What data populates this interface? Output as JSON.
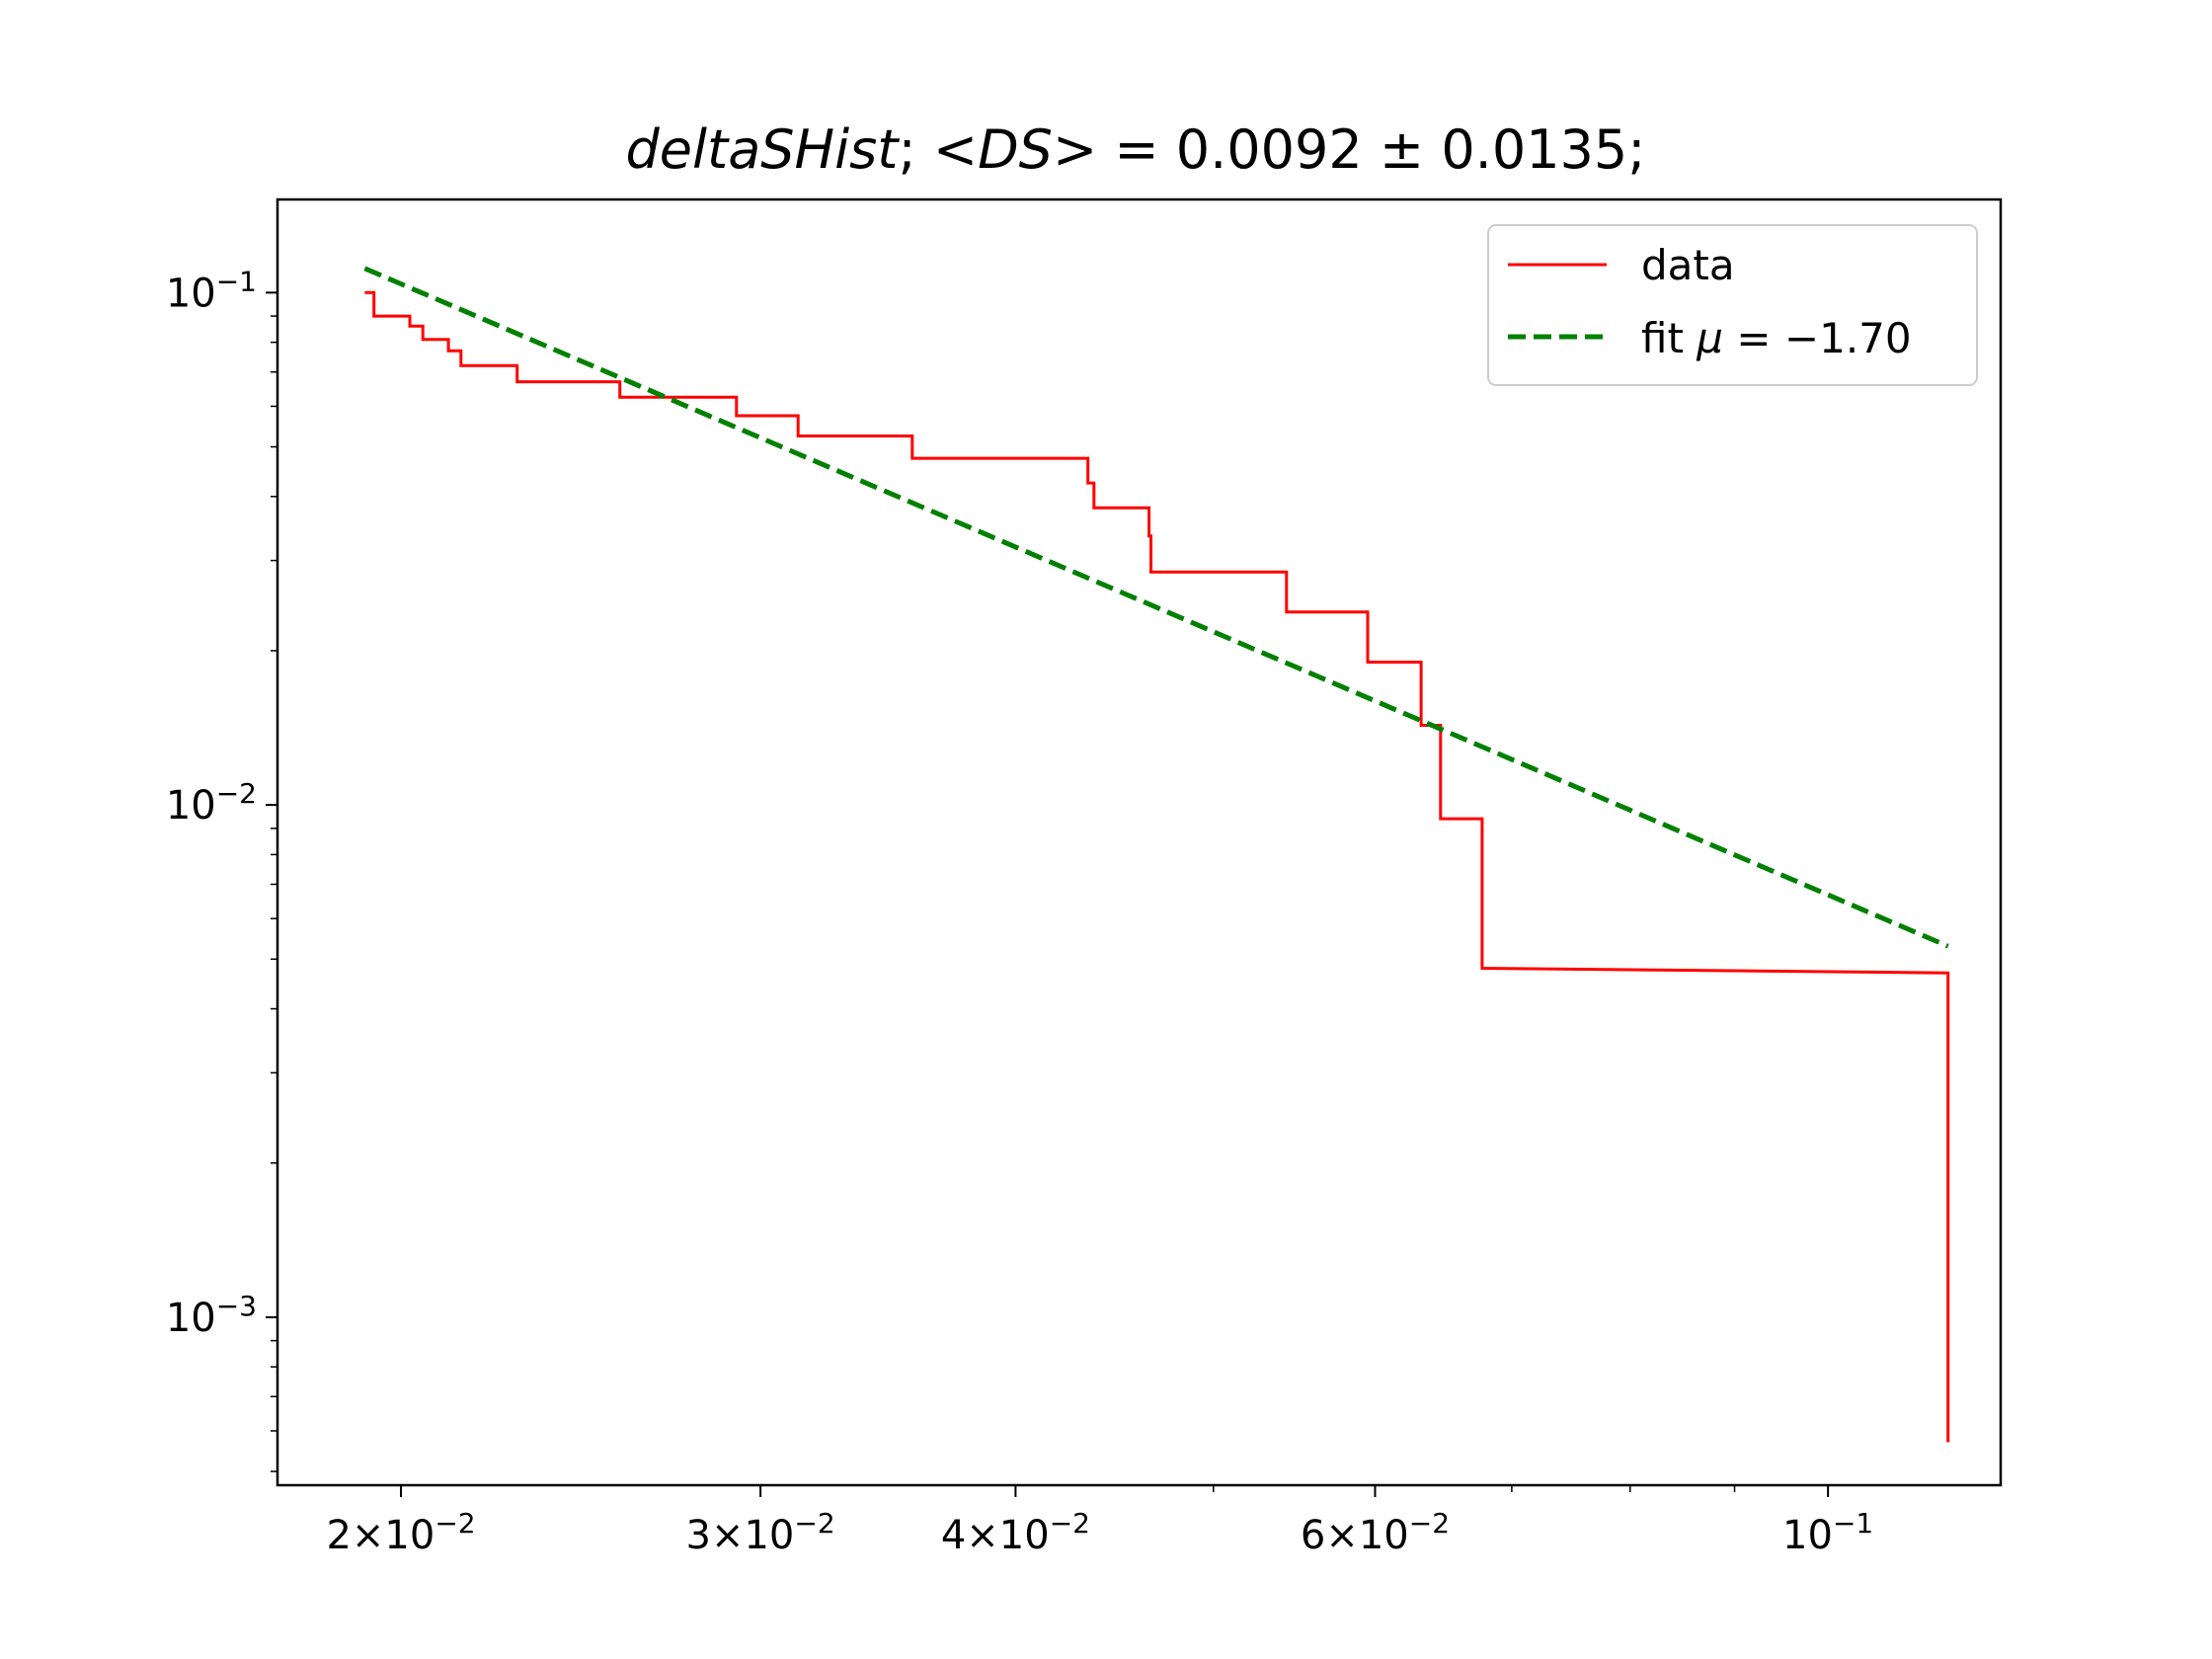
{
  "chart_data": {
    "type": "line",
    "title": {
      "name": "deltaSHist",
      "sep1": "; ",
      "lt": "<",
      "ds": "DS",
      "gt": ">",
      "eq": " = ",
      "value": "0.0092",
      "pm": " ± ",
      "error": "0.0135",
      "end": ";"
    },
    "xscale": "log",
    "yscale": "log",
    "xlim": [
      0.0174,
      0.1215
    ],
    "ylim": [
      0.00047,
      0.152
    ],
    "grid": false,
    "legend_position": "top-right",
    "x_ticks": [
      {
        "value": 0.02,
        "mantissa": "2",
        "times": "×",
        "base": "10",
        "exp": "−2"
      },
      {
        "value": 0.03,
        "mantissa": "3",
        "times": "×",
        "base": "10",
        "exp": "−2"
      },
      {
        "value": 0.04,
        "mantissa": "4",
        "times": "×",
        "base": "10",
        "exp": "−2"
      },
      {
        "value": 0.06,
        "mantissa": "6",
        "times": "×",
        "base": "10",
        "exp": "−2"
      },
      {
        "value": 0.1,
        "mantissa": "",
        "times": "",
        "base": "10",
        "exp": "−1"
      }
    ],
    "y_ticks": [
      {
        "value": 0.1,
        "base": "10",
        "exp": "−1"
      },
      {
        "value": 0.01,
        "base": "10",
        "exp": "−2"
      },
      {
        "value": 0.001,
        "base": "10",
        "exp": "−3"
      }
    ],
    "series": [
      {
        "name": "data",
        "color": "#ff0000",
        "style": "solid",
        "points": [
          [
            0.0192,
            0.1
          ],
          [
            0.0194,
            0.1
          ],
          [
            0.0194,
            0.09
          ],
          [
            0.0202,
            0.09
          ],
          [
            0.0202,
            0.086
          ],
          [
            0.0205,
            0.086
          ],
          [
            0.0205,
            0.081
          ],
          [
            0.0211,
            0.081
          ],
          [
            0.0211,
            0.077
          ],
          [
            0.0214,
            0.077
          ],
          [
            0.0214,
            0.072
          ],
          [
            0.0228,
            0.072
          ],
          [
            0.0228,
            0.067
          ],
          [
            0.0256,
            0.067
          ],
          [
            0.0256,
            0.0625
          ],
          [
            0.0292,
            0.0625
          ],
          [
            0.0292,
            0.0575
          ],
          [
            0.0313,
            0.0575
          ],
          [
            0.0313,
            0.0525
          ],
          [
            0.0356,
            0.0525
          ],
          [
            0.0356,
            0.0475
          ],
          [
            0.0434,
            0.0475
          ],
          [
            0.0434,
            0.0425
          ],
          [
            0.0437,
            0.0425
          ],
          [
            0.0437,
            0.038
          ],
          [
            0.0465,
            0.038
          ],
          [
            0.0465,
            0.0335
          ],
          [
            0.0466,
            0.0335
          ],
          [
            0.0466,
            0.0285
          ],
          [
            0.0543,
            0.0285
          ],
          [
            0.0543,
            0.0238
          ],
          [
            0.0595,
            0.0238
          ],
          [
            0.0595,
            0.019
          ],
          [
            0.0632,
            0.019
          ],
          [
            0.0632,
            0.0143
          ],
          [
            0.0646,
            0.0143
          ],
          [
            0.0646,
            0.0094
          ],
          [
            0.0677,
            0.0094
          ],
          [
            0.0677,
            0.0048
          ],
          [
            0.1145,
            0.0047
          ],
          [
            0.1145,
            0.00057
          ]
        ]
      },
      {
        "name": "fit",
        "label_prefix": "fit ",
        "label_symbol": "μ",
        "label_value": " = −1.70",
        "color": "#008000",
        "style": "dashed",
        "mu": -1.7,
        "points": [
          [
            0.0192,
            0.1115
          ],
          [
            0.1145,
            0.0053
          ]
        ]
      }
    ]
  }
}
